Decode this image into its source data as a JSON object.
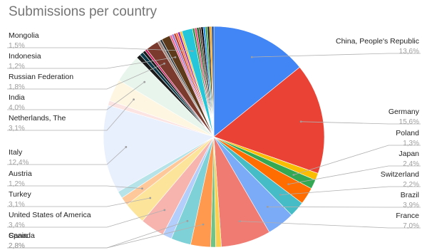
{
  "chart_data": {
    "type": "pie",
    "title": "Submissions per country",
    "slices": [
      {
        "label": "China, People's Republic",
        "value": 13.6,
        "pct_label": "13,6%",
        "color": "#4285f4",
        "labeled": true
      },
      {
        "label": "Germany",
        "value": 15.6,
        "pct_label": "15,6%",
        "color": "#ea4335",
        "labeled": true
      },
      {
        "label": "",
        "value": 1.0,
        "color": "#fbbc04",
        "labeled": false
      },
      {
        "label": "Poland",
        "value": 1.3,
        "pct_label": "1,3%",
        "color": "#34a853",
        "labeled": true
      },
      {
        "label": "Japan",
        "value": 2.4,
        "pct_label": "2,4%",
        "color": "#ff6d01",
        "labeled": true
      },
      {
        "label": "Switzerland",
        "value": 2.2,
        "pct_label": "2,2%",
        "color": "#46bdc6",
        "labeled": true
      },
      {
        "label": "Brazil",
        "value": 3.9,
        "pct_label": "3,9%",
        "color": "#7baaf7",
        "labeled": true
      },
      {
        "label": "France",
        "value": 7.0,
        "pct_label": "7,0%",
        "color": "#f07b72",
        "labeled": true
      },
      {
        "label": "",
        "value": 0.8,
        "color": "#fcd04f",
        "labeled": false
      },
      {
        "label": "",
        "value": 0.7,
        "color": "#71c287",
        "labeled": false
      },
      {
        "label": "Spain",
        "value": 2.8,
        "pct_label": "2,8%",
        "color": "#ff994d",
        "labeled": true
      },
      {
        "label": "Canada",
        "value": 2.8,
        "pct_label": "2,8%",
        "color": "#7ed1d7",
        "labeled": true
      },
      {
        "label": "",
        "value": 1.3,
        "color": "#b3cefb",
        "labeled": false
      },
      {
        "label": "United States of America",
        "value": 3.4,
        "pct_label": "3,4%",
        "color": "#f7b4ae",
        "labeled": true
      },
      {
        "label": "Turkey",
        "value": 3.1,
        "pct_label": "3,1%",
        "color": "#fde49b",
        "labeled": true
      },
      {
        "label": "Austria",
        "value": 1.2,
        "pct_label": "1,2%",
        "color": "#ffc89b",
        "labeled": true
      },
      {
        "label": "",
        "value": 1.0,
        "color": "#b5e3e8",
        "labeled": false
      },
      {
        "label": "Italy",
        "value": 12.4,
        "pct_label": "12,4%",
        "color": "#e8effd",
        "labeled": true
      },
      {
        "label": "",
        "value": 0.7,
        "color": "#fce4e2",
        "labeled": false
      },
      {
        "label": "Netherlands, The",
        "value": 3.1,
        "pct_label": "3,1%",
        "color": "#fef6e0",
        "labeled": true
      },
      {
        "label": "India",
        "value": 4.0,
        "pct_label": "4,0%",
        "color": "#e8f5ec",
        "labeled": true
      },
      {
        "label": "",
        "value": 0.6,
        "color": "#1a1a1a",
        "labeled": false
      },
      {
        "label": "",
        "value": 0.5,
        "color": "#0b3a4a",
        "labeled": false
      },
      {
        "label": "",
        "value": 0.4,
        "color": "#1a1a1a",
        "labeled": false
      },
      {
        "label": "",
        "value": 0.3,
        "color": "#c2185b",
        "labeled": false
      },
      {
        "label": "Russian Federation",
        "value": 1.8,
        "pct_label": "1,8%",
        "color": "#7a3b2e",
        "labeled": true
      },
      {
        "label": "",
        "value": 0.4,
        "color": "#a1887f",
        "labeled": false
      },
      {
        "label": "",
        "value": 0.3,
        "color": "#263238",
        "labeled": false
      },
      {
        "label": "Indonesia",
        "value": 1.2,
        "pct_label": "1,2%",
        "color": "#5d3a1a",
        "labeled": true
      },
      {
        "label": "",
        "value": 0.3,
        "color": "#f06292",
        "labeled": false
      },
      {
        "label": "",
        "value": 0.3,
        "color": "#9575cd",
        "labeled": false
      },
      {
        "label": "",
        "value": 0.3,
        "color": "#c0392b",
        "labeled": false
      },
      {
        "label": "",
        "value": 0.3,
        "color": "#ff7043",
        "labeled": false
      },
      {
        "label": "",
        "value": 0.3,
        "color": "#8e24aa",
        "labeled": false
      },
      {
        "label": "",
        "value": 0.3,
        "color": "#fbc02d",
        "labeled": false
      },
      {
        "label": "Mongolia",
        "value": 1.5,
        "pct_label": "1,5%",
        "color": "#26c6da",
        "labeled": true
      },
      {
        "label": "",
        "value": 0.3,
        "color": "#388e3c",
        "labeled": false
      },
      {
        "label": "",
        "value": 0.3,
        "color": "#ec407a",
        "labeled": false
      },
      {
        "label": "",
        "value": 0.3,
        "color": "#1b5e20",
        "labeled": false
      },
      {
        "label": "",
        "value": 0.3,
        "color": "#5d4037",
        "labeled": false
      },
      {
        "label": "",
        "value": 0.3,
        "color": "#000000",
        "labeled": false
      },
      {
        "label": "",
        "value": 0.3,
        "color": "#1e88e5",
        "labeled": false
      },
      {
        "label": "",
        "value": 0.3,
        "color": "#43a047",
        "labeled": false
      },
      {
        "label": "",
        "value": 0.3,
        "color": "#1a1a1a",
        "labeled": false
      },
      {
        "label": "",
        "value": 0.3,
        "color": "#ffa000",
        "labeled": false
      },
      {
        "label": "",
        "value": 0.3,
        "color": "#0d47a1",
        "labeled": false
      }
    ]
  }
}
